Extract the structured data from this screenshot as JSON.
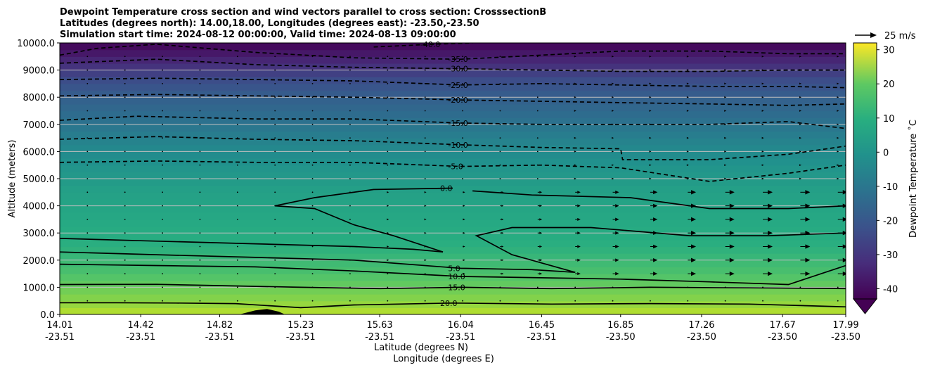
{
  "chart_data": {
    "type": "heatmap",
    "title_lines": [
      "Dewpoint Temperature cross section and wind vectors parallel to cross section: CrosssectionB",
      "Latitudes (degrees north): 14.00,18.00, Longitudes (degrees east): -23.50,-23.50",
      "Simulation start time: 2024-08-12 00:00:00, Valid time: 2024-08-13 09:00:00"
    ],
    "xlabel_lat": "Latitude (degrees N)",
    "xlabel_lon": "Longitude (degrees E)",
    "ylabel": "Altitude (meters)",
    "ylim": [
      0,
      10000
    ],
    "y_ticks": [
      "0.0",
      "1000.0",
      "2000.0",
      "3000.0",
      "4000.0",
      "5000.0",
      "6000.0",
      "7000.0",
      "8000.0",
      "9000.0",
      "10000.0"
    ],
    "x_range_lat": [
      14.01,
      17.99
    ],
    "x_ticks": [
      {
        "lat": "14.01",
        "lon": "-23.51"
      },
      {
        "lat": "14.42",
        "lon": "-23.51"
      },
      {
        "lat": "14.82",
        "lon": "-23.51"
      },
      {
        "lat": "15.23",
        "lon": "-23.51"
      },
      {
        "lat": "15.63",
        "lon": "-23.51"
      },
      {
        "lat": "16.04",
        "lon": "-23.51"
      },
      {
        "lat": "16.45",
        "lon": "-23.51"
      },
      {
        "lat": "16.85",
        "lon": "-23.50"
      },
      {
        "lat": "17.26",
        "lon": "-23.50"
      },
      {
        "lat": "17.67",
        "lon": "-23.50"
      },
      {
        "lat": "17.99",
        "lon": "-23.50"
      }
    ],
    "grid": "horizontal",
    "colormap": "viridis",
    "colorbar": {
      "label": "Dewpoint Temperature ˚C",
      "range": [
        -43,
        32
      ],
      "ticks": [
        "-40",
        "-30",
        "-20",
        "-10",
        "0",
        "10",
        "20",
        "30"
      ]
    },
    "quiver_key": "25 m/s",
    "contour_levels": [
      "-40.0",
      "-35.0",
      "-30.0",
      "-25.0",
      "-20.0",
      "-15.0",
      "-10.0",
      "-5.0",
      "0.0",
      "5.0",
      "10.0",
      "15.0",
      "20.0"
    ],
    "temperature_profile": [
      {
        "alt": 0,
        "temp": 25
      },
      {
        "alt": 500,
        "temp": 19
      },
      {
        "alt": 1000,
        "temp": 15
      },
      {
        "alt": 1600,
        "temp": 10
      },
      {
        "alt": 2500,
        "temp": 5
      },
      {
        "alt": 4500,
        "temp": 0
      },
      {
        "alt": 5600,
        "temp": -5
      },
      {
        "alt": 6500,
        "temp": -10
      },
      {
        "alt": 7200,
        "temp": -15
      },
      {
        "alt": 8000,
        "temp": -20
      },
      {
        "alt": 8600,
        "temp": -25
      },
      {
        "alt": 9000,
        "temp": -30
      },
      {
        "alt": 9400,
        "temp": -35
      },
      {
        "alt": 9800,
        "temp": -40
      },
      {
        "alt": 10000,
        "temp": -42
      }
    ],
    "terrain": [
      {
        "lat": 14.92,
        "alt": 0
      },
      {
        "lat": 15.0,
        "alt": 150
      },
      {
        "lat": 15.06,
        "alt": 200
      },
      {
        "lat": 15.12,
        "alt": 100
      },
      {
        "lat": 15.15,
        "alt": 0
      }
    ],
    "contours": [
      {
        "level": "20.0",
        "points": [
          [
            14.01,
            430
          ],
          [
            14.3,
            430
          ],
          [
            14.6,
            420
          ],
          [
            14.9,
            400
          ],
          [
            15.23,
            250
          ],
          [
            15.5,
            350
          ],
          [
            16.0,
            420
          ],
          [
            16.5,
            380
          ],
          [
            17.0,
            400
          ],
          [
            17.5,
            380
          ],
          [
            17.99,
            280
          ]
        ]
      },
      {
        "level": "15.0",
        "points": [
          [
            14.01,
            1100
          ],
          [
            14.5,
            1110
          ],
          [
            14.9,
            1050
          ],
          [
            15.23,
            1000
          ],
          [
            15.63,
            950
          ],
          [
            16.04,
            1000
          ],
          [
            16.5,
            950
          ],
          [
            17.0,
            1000
          ],
          [
            17.5,
            980
          ],
          [
            17.99,
            950
          ]
        ]
      },
      {
        "level": "10.0",
        "points": [
          [
            14.01,
            1850
          ],
          [
            14.5,
            1800
          ],
          [
            15.0,
            1750
          ],
          [
            15.5,
            1600
          ],
          [
            16.04,
            1400
          ],
          [
            16.45,
            1350
          ],
          [
            16.85,
            1300
          ],
          [
            17.3,
            1200
          ],
          [
            17.7,
            1100
          ],
          [
            17.99,
            1800
          ]
        ]
      },
      {
        "level": "5.0",
        "points": [
          [
            14.01,
            2300
          ],
          [
            14.5,
            2200
          ],
          [
            15.0,
            2100
          ],
          [
            15.5,
            2000
          ],
          [
            16.04,
            1700
          ],
          [
            16.4,
            1650
          ],
          [
            16.62,
            1550
          ]
        ]
      },
      {
        "level": "5.0",
        "points": [
          [
            14.01,
            2800
          ],
          [
            14.5,
            2700
          ],
          [
            15.0,
            2600
          ],
          [
            15.5,
            2500
          ],
          [
            15.8,
            2400
          ],
          [
            15.95,
            2300
          ]
        ]
      },
      {
        "level": "0.0",
        "points": [
          [
            15.95,
            2300
          ],
          [
            15.7,
            2900
          ],
          [
            15.5,
            3300
          ],
          [
            15.3,
            3900
          ],
          [
            15.1,
            4000
          ],
          [
            15.3,
            4300
          ],
          [
            15.6,
            4600
          ],
          [
            16.0,
            4650
          ]
        ]
      },
      {
        "level": "0.0",
        "points": [
          [
            16.62,
            1550
          ],
          [
            16.3,
            2200
          ],
          [
            16.12,
            2900
          ],
          [
            16.3,
            3200
          ],
          [
            16.7,
            3200
          ],
          [
            17.2,
            2900
          ],
          [
            17.6,
            2900
          ],
          [
            17.99,
            3000
          ]
        ]
      },
      {
        "level": "0.0",
        "points": [
          [
            16.1,
            4550
          ],
          [
            16.4,
            4400
          ],
          [
            16.9,
            4300
          ],
          [
            17.3,
            3900
          ],
          [
            17.7,
            3900
          ],
          [
            17.99,
            4000
          ]
        ]
      },
      {
        "level": "-5.0",
        "points": [
          [
            14.01,
            5600
          ],
          [
            14.5,
            5650
          ],
          [
            15.0,
            5600
          ],
          [
            15.5,
            5600
          ],
          [
            16.04,
            5450
          ],
          [
            16.45,
            5500
          ],
          [
            16.85,
            5400
          ],
          [
            17.3,
            4900
          ],
          [
            17.7,
            5200
          ],
          [
            17.99,
            5500
          ]
        ]
      },
      {
        "level": "-10.0",
        "points": [
          [
            14.01,
            6450
          ],
          [
            14.5,
            6550
          ],
          [
            15.0,
            6450
          ],
          [
            15.5,
            6400
          ],
          [
            16.04,
            6250
          ],
          [
            16.45,
            6150
          ],
          [
            16.85,
            6100
          ],
          [
            16.86,
            5700
          ],
          [
            17.3,
            5700
          ],
          [
            17.7,
            5900
          ],
          [
            17.99,
            6200
          ]
        ]
      },
      {
        "level": "-15.0",
        "points": [
          [
            14.01,
            7150
          ],
          [
            14.4,
            7300
          ],
          [
            15.0,
            7200
          ],
          [
            15.5,
            7200
          ],
          [
            16.04,
            7050
          ],
          [
            16.45,
            7000
          ],
          [
            16.85,
            7000
          ],
          [
            17.3,
            7000
          ],
          [
            17.7,
            7100
          ],
          [
            17.99,
            6850
          ]
        ]
      },
      {
        "level": "-20.0",
        "points": [
          [
            14.01,
            8050
          ],
          [
            14.5,
            8100
          ],
          [
            15.0,
            8050
          ],
          [
            15.5,
            8000
          ],
          [
            16.04,
            7900
          ],
          [
            16.45,
            7850
          ],
          [
            16.85,
            7800
          ],
          [
            17.3,
            7750
          ],
          [
            17.7,
            7700
          ],
          [
            17.99,
            7750
          ]
        ]
      },
      {
        "level": "-25.0",
        "points": [
          [
            14.01,
            8650
          ],
          [
            14.5,
            8700
          ],
          [
            15.0,
            8650
          ],
          [
            15.5,
            8600
          ],
          [
            16.04,
            8450
          ],
          [
            16.45,
            8500
          ],
          [
            16.85,
            8450
          ],
          [
            17.3,
            8400
          ],
          [
            17.7,
            8400
          ],
          [
            17.99,
            8350
          ]
        ]
      },
      {
        "level": "-30.0",
        "points": [
          [
            14.01,
            9250
          ],
          [
            14.5,
            9400
          ],
          [
            15.0,
            9200
          ],
          [
            15.5,
            9100
          ],
          [
            16.04,
            9050
          ],
          [
            16.45,
            9000
          ],
          [
            16.85,
            8950
          ],
          [
            17.3,
            8950
          ],
          [
            17.7,
            9000
          ],
          [
            17.99,
            9000
          ]
        ]
      },
      {
        "level": "-35.0",
        "points": [
          [
            14.01,
            9550
          ],
          [
            14.2,
            9800
          ],
          [
            14.5,
            9950
          ],
          [
            15.0,
            9650
          ],
          [
            15.5,
            9450
          ],
          [
            16.04,
            9400
          ],
          [
            16.45,
            9550
          ],
          [
            16.85,
            9700
          ],
          [
            17.3,
            9700
          ],
          [
            17.7,
            9600
          ],
          [
            17.99,
            9600
          ]
        ]
      },
      {
        "level": "-40.0",
        "points": [
          [
            15.6,
            9850
          ],
          [
            15.9,
            9950
          ],
          [
            16.1,
            10000
          ]
        ]
      }
    ],
    "wind_summary": "near-zero winds west of 16.0 N; eastward winds increasing to about 10 m/s between 1500 and 4500 m east of 16.5 N"
  }
}
